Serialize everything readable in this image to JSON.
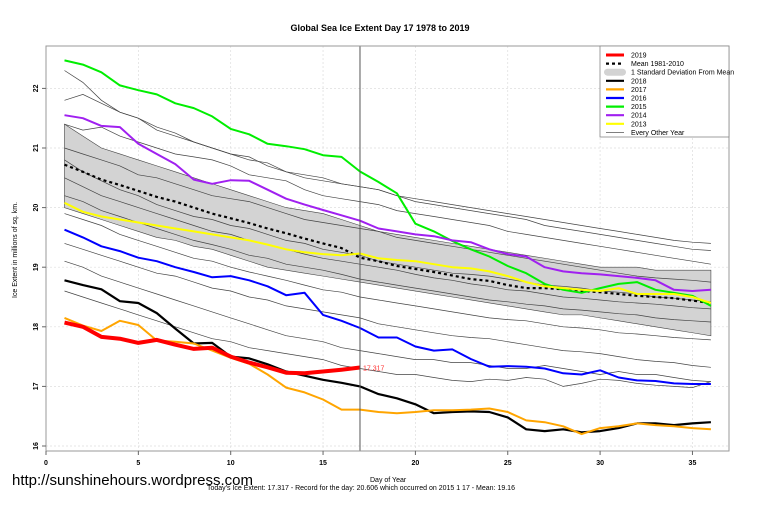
{
  "footer": {
    "url": "http://sunshinehours.wordpress.com",
    "summary": "Today's Ice Extent: 17.317  - Record for the day: 20.606 which occurred on 2015 1 17  - Mean: 19.16"
  },
  "chart_data": {
    "type": "line",
    "title": "Global Sea Ice Extent Day 17 1978 to 2019",
    "xlabel": "Day of Year",
    "ylabel": "Ice Extent in millions of sq. km.",
    "xlim": [
      0,
      37
    ],
    "ylim": [
      15.9,
      22.7
    ],
    "xticks": [
      0,
      5,
      10,
      15,
      20,
      25,
      30,
      35
    ],
    "yticks": [
      16,
      17,
      18,
      19,
      20,
      21,
      22
    ],
    "grid": true,
    "legend_position": "top-right",
    "current_day": 17,
    "annotation": {
      "text": "17.317",
      "x": 17,
      "y": 17.317,
      "color": "#ff3333"
    },
    "legend": [
      {
        "label": "2019",
        "style": "thick",
        "color": "#ff0000"
      },
      {
        "label": "Mean 1981-2010",
        "style": "dashed",
        "color": "#000000"
      },
      {
        "label": "1 Standard Deviation From Mean",
        "style": "band",
        "color": "#d3d3d3"
      },
      {
        "label": "2018",
        "style": "line",
        "color": "#000000"
      },
      {
        "label": "2017",
        "style": "line",
        "color": "#ffa500"
      },
      {
        "label": "2016",
        "style": "line",
        "color": "#0000ff"
      },
      {
        "label": "2015",
        "style": "line",
        "color": "#00ee00"
      },
      {
        "label": "2014",
        "style": "line",
        "color": "#a020f0"
      },
      {
        "label": "2013",
        "style": "line",
        "color": "#ffff00"
      },
      {
        "label": "Every Other Year",
        "style": "thin",
        "color": "#555555"
      }
    ],
    "sd_band": {
      "x": [
        1,
        36
      ],
      "upper": [
        21.4,
        21.2,
        21.0,
        20.9,
        20.8,
        20.7,
        20.6,
        20.5,
        20.4,
        20.3,
        20.2,
        20.1,
        20.0,
        19.95,
        19.9,
        19.8,
        19.7,
        19.6,
        19.55,
        19.5,
        19.45,
        19.4,
        19.35,
        19.3,
        19.25,
        19.2,
        19.15,
        19.1,
        19.05,
        19.0,
        19.0,
        19.0,
        18.95,
        18.95,
        18.95,
        18.95
      ],
      "lower": [
        20.0,
        19.9,
        19.8,
        19.7,
        19.6,
        19.5,
        19.45,
        19.35,
        19.3,
        19.2,
        19.1,
        19.0,
        18.95,
        18.9,
        18.85,
        18.8,
        18.75,
        18.7,
        18.65,
        18.6,
        18.55,
        18.5,
        18.45,
        18.4,
        18.35,
        18.3,
        18.25,
        18.2,
        18.2,
        18.15,
        18.1,
        18.05,
        18.0,
        17.95,
        17.9,
        17.85
      ]
    },
    "series": [
      {
        "name": "Mean 1981-2010",
        "color": "#000000",
        "dash": true,
        "x_start": 1,
        "values": [
          20.72,
          20.6,
          20.47,
          20.38,
          20.28,
          20.18,
          20.1,
          20.0,
          19.9,
          19.82,
          19.74,
          19.65,
          19.57,
          19.48,
          19.4,
          19.32,
          19.16,
          19.1,
          19.02,
          18.97,
          18.92,
          18.86,
          18.8,
          18.77,
          18.7,
          18.65,
          18.65,
          18.63,
          18.6,
          18.58,
          18.55,
          18.52,
          18.5,
          18.48,
          18.44,
          18.4
        ]
      },
      {
        "name": "2018",
        "color": "#000000",
        "width": 2.2,
        "x_start": 1,
        "values": [
          18.78,
          18.7,
          18.63,
          18.43,
          18.4,
          18.23,
          17.97,
          17.72,
          17.73,
          17.5,
          17.47,
          17.37,
          17.25,
          17.18,
          17.11,
          17.06,
          17.0,
          16.87,
          16.8,
          16.7,
          16.55,
          16.57,
          16.58,
          16.57,
          16.48,
          16.28,
          16.25,
          16.28,
          16.23,
          16.25,
          16.3,
          16.38,
          16.38,
          16.35,
          16.38,
          16.4
        ]
      },
      {
        "name": "2017",
        "color": "#ffa500",
        "width": 2,
        "x_start": 1,
        "values": [
          18.15,
          18.02,
          17.93,
          18.1,
          18.03,
          17.77,
          17.75,
          17.72,
          17.6,
          17.48,
          17.38,
          17.2,
          16.98,
          16.9,
          16.78,
          16.61,
          16.61,
          16.57,
          16.55,
          16.57,
          16.6,
          16.6,
          16.61,
          16.63,
          16.57,
          16.43,
          16.4,
          16.33,
          16.2,
          16.3,
          16.33,
          16.38,
          16.35,
          16.33,
          16.3,
          16.28
        ]
      },
      {
        "name": "2016",
        "color": "#0000ff",
        "width": 2,
        "x_start": 1,
        "values": [
          19.63,
          19.5,
          19.35,
          19.27,
          19.16,
          19.1,
          19.0,
          18.92,
          18.83,
          18.85,
          18.78,
          18.68,
          18.53,
          18.57,
          18.2,
          18.1,
          17.98,
          17.82,
          17.82,
          17.67,
          17.6,
          17.62,
          17.46,
          17.33,
          17.34,
          17.33,
          17.3,
          17.22,
          17.2,
          17.27,
          17.15,
          17.1,
          17.09,
          17.05,
          17.04,
          17.04
        ]
      },
      {
        "name": "2015",
        "color": "#00ee00",
        "width": 2,
        "x_start": 1,
        "values": [
          22.47,
          22.4,
          22.27,
          22.05,
          21.97,
          21.9,
          21.75,
          21.67,
          21.53,
          21.32,
          21.23,
          21.07,
          21.03,
          20.98,
          20.88,
          20.85,
          20.606,
          20.43,
          20.24,
          19.73,
          19.6,
          19.44,
          19.3,
          19.18,
          19.02,
          18.9,
          18.72,
          18.62,
          18.57,
          18.65,
          18.72,
          18.75,
          18.62,
          18.57,
          18.52,
          18.35
        ]
      },
      {
        "name": "2014",
        "color": "#a020f0",
        "width": 2,
        "x_start": 1,
        "values": [
          21.55,
          21.5,
          21.37,
          21.35,
          21.07,
          20.9,
          20.73,
          20.47,
          20.4,
          20.46,
          20.45,
          20.3,
          20.15,
          20.05,
          19.96,
          19.87,
          19.78,
          19.65,
          19.6,
          19.55,
          19.52,
          19.45,
          19.42,
          19.3,
          19.22,
          19.18,
          19.0,
          18.93,
          18.9,
          18.88,
          18.85,
          18.82,
          18.78,
          18.62,
          18.6,
          18.62
        ]
      },
      {
        "name": "2013",
        "color": "#ffff00",
        "width": 2,
        "x_start": 1,
        "values": [
          20.08,
          19.93,
          19.85,
          19.8,
          19.75,
          19.7,
          19.65,
          19.6,
          19.55,
          19.5,
          19.45,
          19.38,
          19.3,
          19.25,
          19.22,
          19.2,
          19.23,
          19.15,
          19.12,
          19.1,
          19.05,
          19.0,
          18.98,
          18.93,
          18.85,
          18.75,
          18.68,
          18.65,
          18.62,
          18.6,
          18.65,
          18.55,
          18.55,
          18.55,
          18.5,
          18.4
        ]
      },
      {
        "name": "2019",
        "color": "#ff0000",
        "width": 4,
        "x_start": 1,
        "values": [
          18.07,
          18.0,
          17.83,
          17.8,
          17.73,
          17.78,
          17.7,
          17.63,
          17.65,
          17.5,
          17.4,
          17.32,
          17.23,
          17.22,
          17.25,
          17.28,
          17.317
        ]
      }
    ],
    "every_other_year": [
      [
        22.3,
        22.1,
        21.8,
        21.6,
        21.5,
        21.3,
        21.2,
        21.1,
        21.0,
        20.9,
        20.85,
        20.7,
        20.6,
        20.5,
        20.45,
        20.4,
        20.35,
        20.3,
        20.2,
        20.15,
        20.1,
        20.05,
        20.0,
        19.95,
        19.9,
        19.85,
        19.8,
        19.75,
        19.7,
        19.65,
        19.6,
        19.55,
        19.5,
        19.45,
        19.42,
        19.4
      ],
      [
        21.8,
        21.9,
        21.75,
        21.6,
        21.5,
        21.35,
        21.25,
        21.1,
        21.0,
        20.9,
        20.8,
        20.75,
        20.6,
        20.55,
        20.5,
        20.4,
        20.35,
        20.3,
        20.2,
        20.1,
        20.05,
        20.0,
        19.95,
        19.9,
        19.85,
        19.8,
        19.7,
        19.65,
        19.6,
        19.55,
        19.5,
        19.45,
        19.4,
        19.35,
        19.3,
        19.28
      ],
      [
        21.4,
        21.3,
        21.35,
        21.2,
        21.1,
        21.0,
        20.9,
        20.85,
        20.8,
        20.7,
        20.55,
        20.5,
        20.45,
        20.3,
        20.2,
        20.15,
        20.1,
        20.05,
        19.95,
        19.9,
        19.85,
        19.8,
        19.75,
        19.7,
        19.6,
        19.55,
        19.5,
        19.45,
        19.4,
        19.35,
        19.3,
        19.25,
        19.2,
        19.15,
        19.1,
        19.05
      ],
      [
        21.0,
        20.9,
        20.8,
        20.7,
        20.55,
        20.5,
        20.4,
        20.3,
        20.2,
        20.15,
        20.1,
        20.0,
        19.9,
        19.8,
        19.75,
        19.7,
        19.65,
        19.6,
        19.5,
        19.45,
        19.4,
        19.35,
        19.3,
        19.25,
        19.2,
        19.15,
        19.1,
        19.05,
        19.0,
        18.95,
        18.9,
        18.85,
        18.82,
        18.8,
        18.78,
        18.75
      ],
      [
        20.8,
        20.6,
        20.45,
        20.3,
        20.2,
        20.05,
        19.95,
        19.85,
        19.8,
        19.7,
        19.65,
        19.55,
        19.45,
        19.4,
        19.3,
        19.25,
        19.2,
        19.1,
        19.05,
        19.0,
        18.95,
        18.9,
        18.88,
        18.85,
        18.8,
        18.75,
        18.7,
        18.68,
        18.65,
        18.6,
        18.58,
        18.55,
        18.5,
        18.48,
        18.45,
        18.42
      ],
      [
        20.5,
        20.35,
        20.2,
        20.1,
        20.0,
        19.9,
        19.8,
        19.7,
        19.6,
        19.55,
        19.45,
        19.38,
        19.3,
        19.22,
        19.15,
        19.1,
        19.05,
        19.0,
        18.95,
        18.88,
        18.82,
        18.78,
        18.72,
        18.68,
        18.62,
        18.6,
        18.55,
        18.5,
        18.48,
        18.45,
        18.42,
        18.4,
        18.38,
        18.35,
        18.32,
        18.3
      ],
      [
        20.2,
        20.1,
        19.95,
        19.85,
        19.75,
        19.65,
        19.55,
        19.45,
        19.38,
        19.3,
        19.2,
        19.15,
        19.05,
        19.0,
        18.95,
        18.88,
        18.8,
        18.75,
        18.7,
        18.65,
        18.6,
        18.55,
        18.5,
        18.45,
        18.42,
        18.38,
        18.35,
        18.3,
        18.28,
        18.25,
        18.22,
        18.2,
        18.15,
        18.12,
        18.1,
        18.08
      ],
      [
        19.9,
        19.8,
        19.7,
        19.55,
        19.45,
        19.35,
        19.25,
        19.15,
        19.1,
        19.0,
        18.92,
        18.85,
        18.78,
        18.7,
        18.62,
        18.58,
        18.5,
        18.45,
        18.4,
        18.35,
        18.3,
        18.25,
        18.2,
        18.15,
        18.12,
        18.1,
        18.05,
        18.0,
        17.98,
        17.95,
        17.9,
        17.88,
        17.85,
        17.82,
        17.8,
        17.78
      ],
      [
        19.4,
        19.3,
        19.2,
        19.1,
        19.0,
        18.9,
        18.85,
        18.75,
        18.65,
        18.6,
        18.5,
        18.45,
        18.35,
        18.3,
        18.25,
        18.2,
        18.15,
        18.05,
        18.0,
        17.95,
        17.9,
        17.85,
        17.82,
        17.8,
        17.75,
        17.7,
        17.65,
        17.6,
        17.58,
        17.55,
        17.5,
        17.45,
        17.42,
        17.4,
        17.35,
        17.32
      ],
      [
        19.1,
        19.0,
        18.85,
        18.75,
        18.65,
        18.55,
        18.45,
        18.35,
        18.25,
        18.15,
        18.05,
        17.95,
        17.85,
        17.8,
        17.75,
        17.65,
        17.6,
        17.55,
        17.5,
        17.45,
        17.45,
        17.4,
        17.4,
        17.35,
        17.3,
        17.3,
        17.35,
        17.3,
        17.25,
        17.2,
        17.25,
        17.2,
        17.2,
        17.15,
        17.1,
        17.08
      ],
      [
        18.6,
        18.5,
        18.4,
        18.3,
        18.2,
        18.1,
        18.0,
        17.9,
        17.8,
        17.75,
        17.65,
        17.6,
        17.55,
        17.5,
        17.45,
        17.35,
        17.3,
        17.25,
        17.2,
        17.2,
        17.15,
        17.1,
        17.08,
        17.12,
        17.1,
        17.15,
        17.12,
        17.0,
        17.05,
        17.12,
        17.1,
        17.05,
        17.02,
        17.0,
        16.98,
        17.08
      ]
    ]
  }
}
